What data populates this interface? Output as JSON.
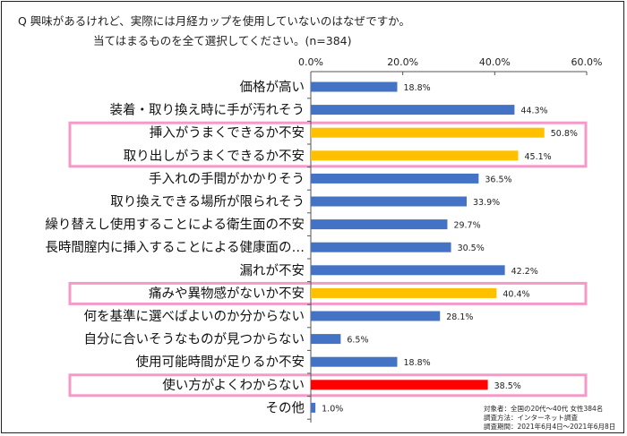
{
  "question": {
    "line1": "Q 興味があるけれど、実際には月経カップを使用していないのはなぜですか。",
    "line2": "当てはまるものを全て選択してください。(n=384)"
  },
  "notes": {
    "target": "対象者：全国の20代〜40代 女性384名",
    "method": "調査方法：インターネット調査",
    "period": "調査期間：2021年6月4日〜2021年6月8日"
  },
  "colors": {
    "bar_default": "#4472C4",
    "bar_highlight": "#FFC000",
    "bar_top": "#FF0000",
    "highlight_box": "#F49AC9"
  },
  "chart_data": {
    "type": "bar",
    "orientation": "horizontal",
    "xlim": [
      0,
      60
    ],
    "ticks": [
      "0.0%",
      "20.0%",
      "40.0%",
      "60.0%"
    ],
    "tick_values": [
      0,
      20,
      40,
      60
    ],
    "categories": [
      "価格が高い",
      "装着・取り換え時に手が汚れそう",
      "挿入がうまくできるか不安",
      "取り出しがうまくできるか不安",
      "手入れの手間がかかりそう",
      "取り換えできる場所が限られそう",
      "繰り替えし使用することによる衛生面の不安",
      "長時間膣内に挿入することによる健康面の…",
      "漏れが不安",
      "痛みや異物感がないか不安",
      "何を基準に選べばよいのか分からない",
      "自分に合いそうなものが見つからない",
      "使用可能時間が足りるか不安",
      "使い方がよくわからない",
      "その他"
    ],
    "values": [
      18.8,
      44.3,
      50.8,
      45.1,
      36.5,
      33.9,
      29.7,
      30.5,
      42.2,
      40.4,
      28.1,
      6.5,
      18.8,
      38.5,
      1.0
    ],
    "value_labels": [
      "18.8%",
      "44.3%",
      "50.8%",
      "45.1%",
      "36.5%",
      "33.9%",
      "29.7%",
      "30.5%",
      "42.2%",
      "40.4%",
      "28.1%",
      "6.5%",
      "18.8%",
      "38.5%",
      "1.0%"
    ],
    "bar_colors": [
      "default",
      "default",
      "highlight",
      "highlight",
      "default",
      "default",
      "default",
      "default",
      "default",
      "highlight",
      "default",
      "default",
      "default",
      "top",
      "default"
    ],
    "highlight_groups": [
      [
        2,
        3
      ],
      [
        9
      ],
      [
        13
      ]
    ],
    "grid": false,
    "legend": "none"
  }
}
